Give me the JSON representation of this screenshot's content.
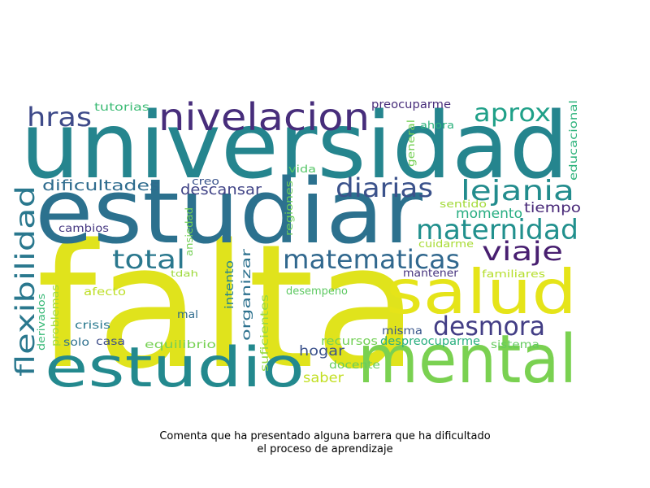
{
  "caption": {
    "line1": "Comenta que ha presentado alguna barrera que ha dificultado",
    "line2": "el proceso de aprendizaje"
  },
  "words": [
    {
      "text": "falta",
      "color": "#e0e31c"
    },
    {
      "text": "universidad",
      "color": "#25858e"
    },
    {
      "text": "estudiar",
      "color": "#2c718e"
    },
    {
      "text": "mental",
      "color": "#7ad151"
    },
    {
      "text": "salud",
      "color": "#e5e419"
    },
    {
      "text": "estudio",
      "color": "#23898e"
    },
    {
      "text": "nivelacion",
      "color": "#472d7b"
    },
    {
      "text": "maternidad",
      "color": "#21908d"
    },
    {
      "text": "lejania",
      "color": "#228c8d"
    },
    {
      "text": "diarias",
      "color": "#3b528b"
    },
    {
      "text": "matematicas",
      "color": "#31688e"
    },
    {
      "text": "desmora",
      "color": "#433e85"
    },
    {
      "text": "total",
      "color": "#2a788e"
    },
    {
      "text": "viaje",
      "color": "#481f70"
    },
    {
      "text": "aprox",
      "color": "#1fa088"
    },
    {
      "text": "hras",
      "color": "#3e4a89"
    },
    {
      "text": "flexibilidad",
      "color": "#2a788e"
    },
    {
      "text": "dificultades",
      "color": "#2f6c8e"
    },
    {
      "text": "descansar",
      "color": "#414487"
    },
    {
      "text": "tiempo",
      "color": "#482878"
    },
    {
      "text": "momento",
      "color": "#27ad81"
    },
    {
      "text": "hogar",
      "color": "#3b528b"
    },
    {
      "text": "saber",
      "color": "#c2df23"
    },
    {
      "text": "organizar",
      "color": "#2d718e"
    },
    {
      "text": "desempeno",
      "color": "#5ec962"
    },
    {
      "text": "despreocuparme",
      "color": "#29af7f"
    },
    {
      "text": "recursos",
      "color": "#73d056"
    },
    {
      "text": "sistema",
      "color": "#65cb5e"
    },
    {
      "text": "docente",
      "color": "#67cc5c"
    },
    {
      "text": "misma",
      "color": "#39568c"
    },
    {
      "text": "mantener",
      "color": "#46337e"
    },
    {
      "text": "preocuparme",
      "color": "#472c7a"
    },
    {
      "text": "tutorias",
      "color": "#3cbb75"
    },
    {
      "text": "educacional",
      "color": "#2eb37c"
    },
    {
      "text": "ahora",
      "color": "#2db27d"
    },
    {
      "text": "general",
      "color": "#75d054"
    },
    {
      "text": "cambios",
      "color": "#453781"
    },
    {
      "text": "creo",
      "color": "#3a548c"
    },
    {
      "text": "vida",
      "color": "#56c667"
    },
    {
      "text": "regiones",
      "color": "#6ccd5a"
    },
    {
      "text": "sentido",
      "color": "#a2da37"
    },
    {
      "text": "cuidarme",
      "color": "#a8db34"
    },
    {
      "text": "familiares",
      "color": "#b5de2b"
    },
    {
      "text": "ansiedad",
      "color": "#74d055"
    },
    {
      "text": "tdah",
      "color": "#9dd93b"
    },
    {
      "text": "intento",
      "color": "#25848e"
    },
    {
      "text": "suficientes",
      "color": "#95d840"
    },
    {
      "text": "afecto",
      "color": "#bddf26"
    },
    {
      "text": "mal",
      "color": "#2f6c8e"
    },
    {
      "text": "problemas",
      "color": "#9fda3a"
    },
    {
      "text": "derivados",
      "color": "#38b977"
    },
    {
      "text": "crisis",
      "color": "#29798e"
    },
    {
      "text": "solo",
      "color": "#2d708e"
    },
    {
      "text": "casa",
      "color": "#3d4d8a"
    },
    {
      "text": "equilibrio",
      "color": "#76d153"
    }
  ]
}
